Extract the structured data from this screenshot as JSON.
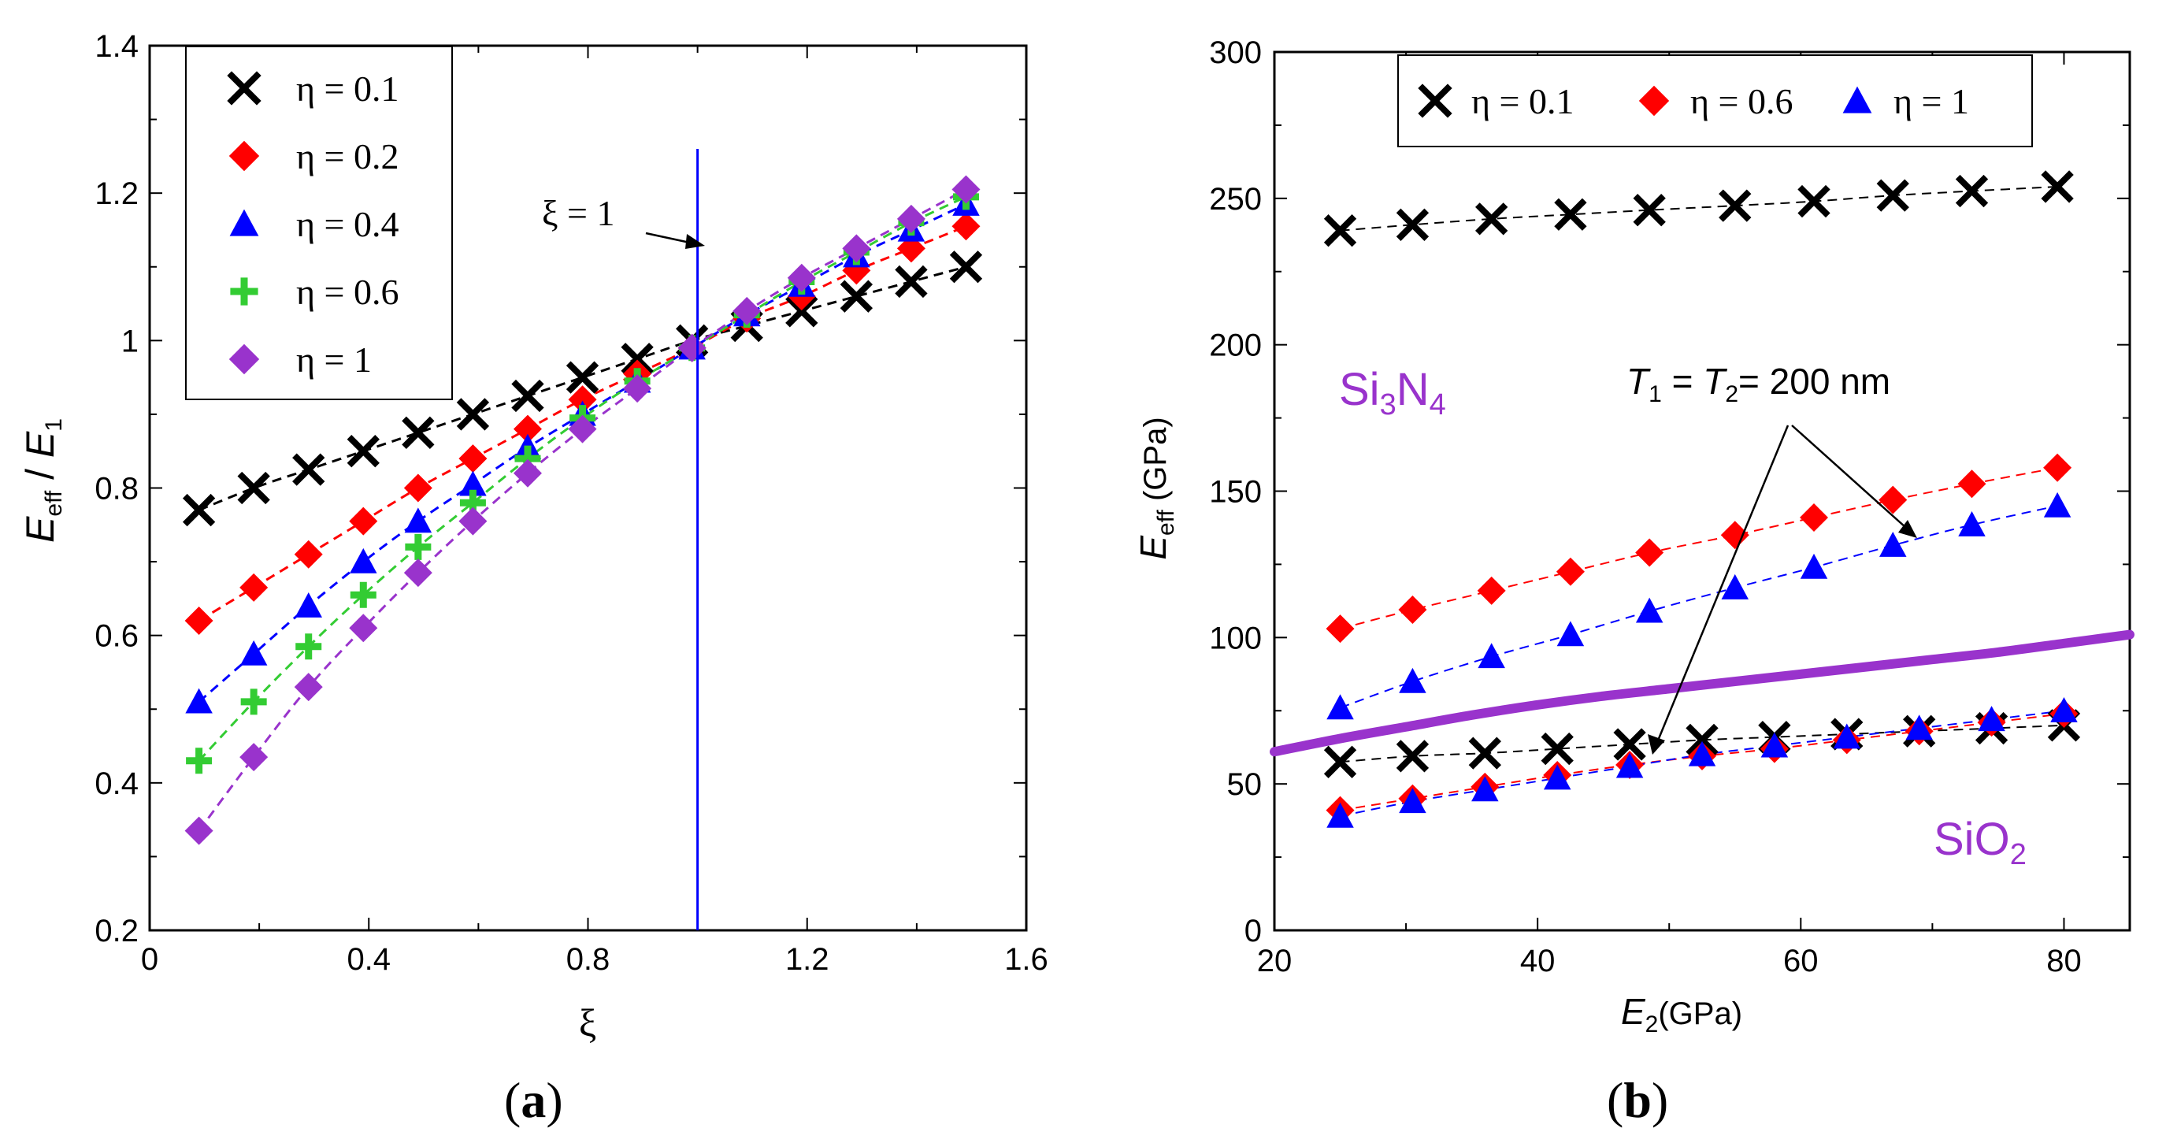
{
  "figure": {
    "caption_a": "(a)",
    "caption_a_letter": "a",
    "caption_b": "(b)",
    "caption_b_letter": "b"
  },
  "chart_data": [
    {
      "id": "a",
      "type": "scatter",
      "xlabel": "ξ",
      "ylabel": {
        "main": "E",
        "sub": "eff",
        "slash": " / ",
        "main2": "E",
        "sub2": "1"
      },
      "xlim": [
        0,
        1.6
      ],
      "ylim": [
        0.2,
        1.4
      ],
      "xticks": [
        "0",
        "0.4",
        "0.8",
        "1.2",
        "1.6"
      ],
      "xtick_values": [
        0,
        0.4,
        0.8,
        1.2,
        1.6
      ],
      "yticks": [
        "0.2",
        "0.4",
        "0.6",
        "0.8",
        "1",
        "1.2",
        "1.4"
      ],
      "ytick_values": [
        0.2,
        0.4,
        0.6,
        0.8,
        1.0,
        1.2,
        1.4
      ],
      "x": [
        0.09,
        0.19,
        0.29,
        0.39,
        0.49,
        0.59,
        0.69,
        0.79,
        0.89,
        0.99,
        1.09,
        1.19,
        1.29,
        1.39,
        1.49
      ],
      "series": [
        {
          "name": "η = 0.1",
          "marker": "x",
          "color": "#000000",
          "line_color": "#000000",
          "values": [
            0.77,
            0.8,
            0.825,
            0.85,
            0.875,
            0.9,
            0.925,
            0.95,
            0.975,
            1.0,
            1.02,
            1.04,
            1.06,
            1.08,
            1.1
          ]
        },
        {
          "name": "η = 0.2",
          "marker": "diamond",
          "color": "#ff0000",
          "line_color": "#ff0000",
          "values": [
            0.62,
            0.665,
            0.71,
            0.755,
            0.8,
            0.84,
            0.88,
            0.92,
            0.955,
            0.99,
            1.03,
            1.06,
            1.095,
            1.125,
            1.155
          ]
        },
        {
          "name": "η = 0.4",
          "marker": "triangle",
          "color": "#0000ff",
          "line_color": "#0000ff",
          "values": [
            0.51,
            0.575,
            0.64,
            0.7,
            0.755,
            0.805,
            0.855,
            0.9,
            0.945,
            0.99,
            1.035,
            1.075,
            1.115,
            1.15,
            1.185
          ]
        },
        {
          "name": "η = 0.6",
          "marker": "plus",
          "color": "#33cc33",
          "line_color": "#33cc33",
          "values": [
            0.43,
            0.51,
            0.585,
            0.655,
            0.72,
            0.78,
            0.84,
            0.895,
            0.945,
            0.99,
            1.035,
            1.08,
            1.12,
            1.16,
            1.195
          ]
        },
        {
          "name": "η = 1",
          "marker": "diamond",
          "color": "#9933cc",
          "line_color": "#9933cc",
          "values": [
            0.335,
            0.435,
            0.53,
            0.61,
            0.685,
            0.755,
            0.82,
            0.88,
            0.935,
            0.99,
            1.04,
            1.085,
            1.125,
            1.165,
            1.205
          ]
        }
      ],
      "vline": {
        "x": 1.0,
        "color": "#0000ff",
        "y_top": 1.26
      },
      "annotations": [
        {
          "text": "ξ = 1"
        }
      ],
      "legend_position": "top-left"
    },
    {
      "id": "b",
      "type": "scatter",
      "xlabel": {
        "main": "E",
        "sub": "2",
        "rest": "(GPa)"
      },
      "ylabel": {
        "main": "E",
        "sub": "eff",
        "rest": " (GPa)"
      },
      "xlim": [
        20,
        85
      ],
      "ylim": [
        0,
        300
      ],
      "xticks": [
        "20",
        "40",
        "60",
        "80"
      ],
      "xtick_values": [
        20,
        40,
        60,
        80
      ],
      "yticks": [
        "0",
        "50",
        "100",
        "150",
        "200",
        "250",
        "300"
      ],
      "ytick_values": [
        0,
        50,
        100,
        150,
        200,
        250,
        300
      ],
      "groups": [
        {
          "name": "Si3N4",
          "x": [
            25,
            30.5,
            36.5,
            42.5,
            48.5,
            55,
            61,
            67,
            73,
            79.5
          ],
          "series": [
            {
              "name": "η = 0.1",
              "marker": "x",
              "color": "#000000",
              "values": [
                239,
                241,
                243,
                244.5,
                246,
                247.5,
                249,
                251,
                252.5,
                254
              ]
            },
            {
              "name": "η = 0.6",
              "marker": "diamond",
              "color": "#ff0000",
              "values": [
                103,
                109.5,
                116,
                122.5,
                129,
                135,
                141,
                147,
                152.5,
                158
              ]
            },
            {
              "name": "η = 1",
              "marker": "triangle",
              "color": "#0000ff",
              "values": [
                76,
                85,
                93.5,
                101,
                109,
                117,
                124,
                131.5,
                138.5,
                145
              ]
            }
          ]
        },
        {
          "name": "SiO2",
          "x": [
            25,
            30.5,
            36,
            41.5,
            47,
            52.5,
            58,
            63.5,
            69,
            74.5,
            80
          ],
          "series": [
            {
              "name": "η = 0.1",
              "marker": "x",
              "color": "#000000",
              "values": [
                57.5,
                59.5,
                60.5,
                62,
                63.5,
                65,
                66,
                67,
                68,
                69,
                70
              ]
            },
            {
              "name": "η = 0.6",
              "marker": "diamond",
              "color": "#ff0000",
              "values": [
                41,
                45,
                49,
                53,
                56.5,
                59.5,
                62,
                65,
                68,
                71,
                74
              ]
            },
            {
              "name": "η = 1",
              "marker": "triangle",
              "color": "#0000ff",
              "values": [
                39,
                44,
                48,
                52,
                56,
                60,
                63,
                66,
                69,
                72,
                75
              ]
            }
          ]
        }
      ],
      "curve": {
        "name": "Si3N4 reference",
        "color": "#9933cc",
        "x": [
          20,
          25,
          30,
          35,
          40,
          45,
          50,
          55,
          60,
          65,
          70,
          75,
          80,
          85
        ],
        "values": [
          61,
          65.5,
          69.5,
          73.5,
          77,
          80,
          82.5,
          85,
          87.5,
          90,
          92.5,
          95,
          98,
          101
        ]
      },
      "legend": [
        "η = 0.1",
        "η = 0.6",
        "η = 1"
      ],
      "legend_position": "top",
      "labels": {
        "si3n4_main": "Si",
        "si3n4_sub1": "3",
        "si3n4_mid": "N",
        "si3n4_sub2": "4",
        "sio2_main": "SiO",
        "sio2_sub": "2",
        "label_color": "#9933cc",
        "thickness_t1": "T",
        "thickness_t1_sub": "1",
        "thickness_eq": " = ",
        "thickness_t2": "T",
        "thickness_t2_sub": "2",
        "thickness_rest": "= 200 nm"
      }
    }
  ]
}
